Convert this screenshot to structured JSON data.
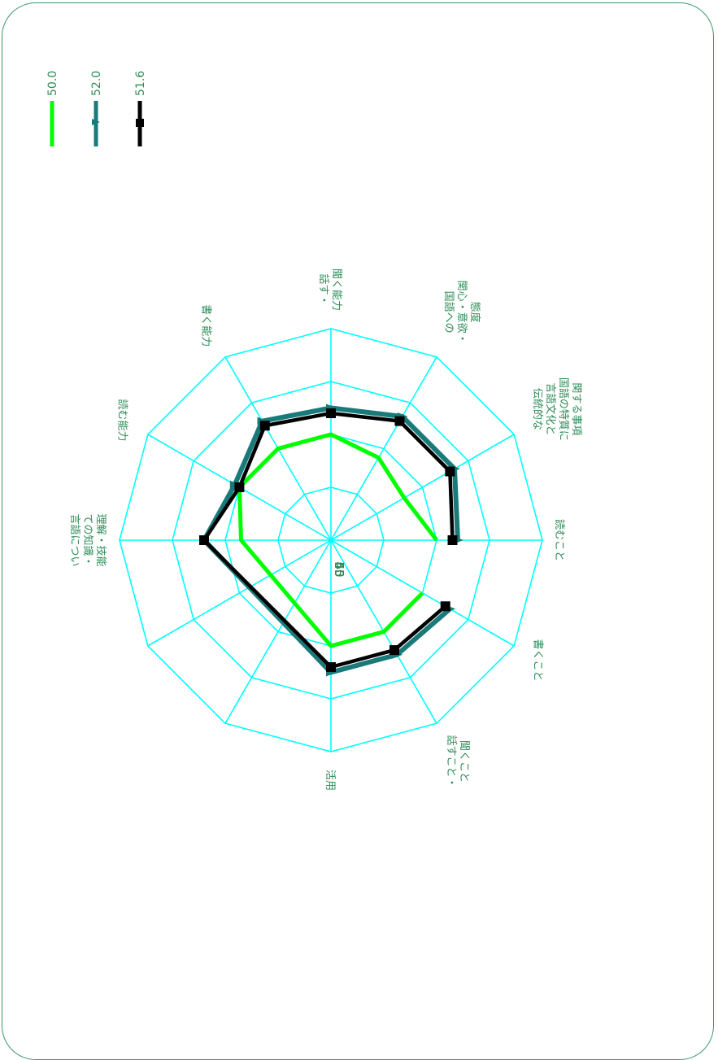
{
  "chart_data": {
    "type": "radar",
    "orientation": "rotated-90-clockwise",
    "categories": [
      [
        "読むこと"
      ],
      [
        "伝統的な",
        "言語文化と",
        "国語の特質に",
        "関する事項"
      ],
      [
        "国語への",
        "関心・意欲・",
        "態度"
      ],
      [
        "話す・",
        "聞く能力"
      ],
      [
        "書く能力"
      ],
      [
        "読む能力"
      ],
      [
        "言語につい",
        "ての知識・",
        "理解・技能"
      ],
      [
        "活用"
      ],
      [
        "話すこと・",
        "聞くこと"
      ],
      [
        "書くこと"
      ]
    ],
    "category_angles": [
      0,
      30,
      60,
      90,
      120,
      150,
      180,
      270,
      300,
      330
    ],
    "rlim": [
      40,
      60
    ],
    "rticks": [
      "40",
      "45",
      "50",
      "55",
      "60"
    ],
    "grid_color": "#00ffff",
    "series": [
      {
        "name": "50.0",
        "color": "#00ff00",
        "marker": "none",
        "values": [
          50.0,
          48.0,
          49.0,
          50.0,
          50.0,
          50.0,
          48.5,
          50.0,
          50.0,
          50.0
        ]
      },
      {
        "name": "52.0",
        "color": "#1a7a7a",
        "marker": "triangle",
        "values": [
          52.0,
          53.5,
          53.5,
          52.5,
          53.0,
          50.5,
          52.0,
          52.5,
          52.5,
          53.0
        ]
      },
      {
        "name": "51.6",
        "color": "#000000",
        "marker": "square",
        "values": [
          51.5,
          53.0,
          53.0,
          52.0,
          52.5,
          50.0,
          52.0,
          52.0,
          52.0,
          52.5
        ]
      }
    ]
  }
}
